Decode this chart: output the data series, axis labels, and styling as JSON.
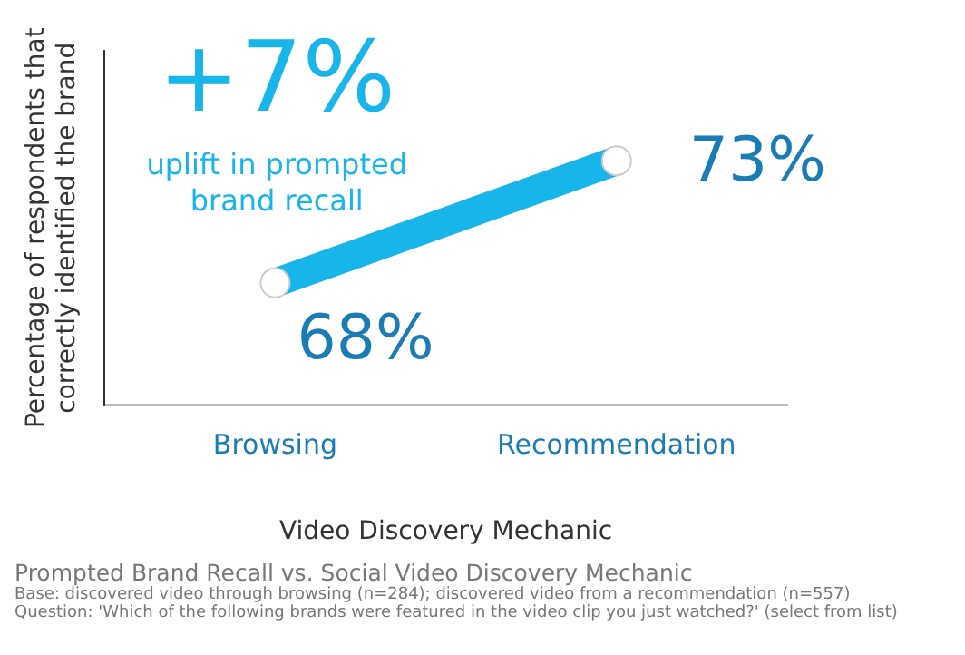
{
  "chart_data": {
    "type": "line",
    "title": "Prompted Brand Recall vs. Social Video Discovery Mechanic",
    "xlabel": "Video Discovery Mechanic",
    "ylabel": "Percentage of respondents that correctly identified the brand",
    "categories": [
      "Browsing",
      "Recommendation"
    ],
    "series": [
      {
        "color": "#17b5ea",
        "values": [
          68,
          73
        ],
        "value_labels": [
          "68%",
          "73%"
        ]
      }
    ],
    "ylim": [
      63,
      77.5
    ],
    "tick_labels": "x",
    "grid": false,
    "legend": false,
    "marker": "circle",
    "annotations": [
      "+7%",
      "uplift in prompted brand recall",
      "Base: discovered video through browsing (n=284); discovered video from a recommendation (n=557)",
      "Question: 'Which of the following brands were featured in the video clip you just watched?' (select from list)"
    ]
  }
}
